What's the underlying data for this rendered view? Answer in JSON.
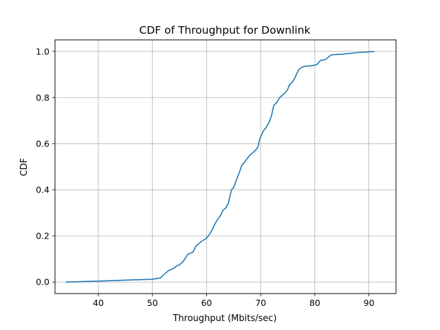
{
  "chart_data": {
    "type": "line",
    "title": "CDF of Throughput for Downlink",
    "xlabel": "Throughput (Mbits/sec)",
    "ylabel": "CDF",
    "xlim": [
      32,
      95
    ],
    "ylim": [
      -0.05,
      1.05
    ],
    "xticks": [
      40,
      50,
      60,
      70,
      80,
      90
    ],
    "yticks": [
      0.0,
      0.2,
      0.4,
      0.6,
      0.8,
      1.0
    ],
    "xtick_labels": [
      "40",
      "50",
      "60",
      "70",
      "80",
      "90"
    ],
    "ytick_labels": [
      "0.0",
      "0.2",
      "0.4",
      "0.6",
      "0.8",
      "1.0"
    ],
    "grid": true,
    "line_color": "#1f77b4",
    "series": [
      {
        "x": [
          34.0,
          40.0,
          46.0,
          50.0,
          51.5,
          52.0,
          52.5,
          53.0,
          54.0,
          54.5,
          55.0,
          55.5,
          56.0,
          56.5,
          57.0,
          57.5,
          58.0,
          58.5,
          59.0,
          60.0,
          60.5,
          61.0,
          61.5,
          62.0,
          62.5,
          63.0,
          63.5,
          64.0,
          64.3,
          64.6,
          65.0,
          65.3,
          65.8,
          66.2,
          66.5,
          67.0,
          67.5,
          68.0,
          68.5,
          69.0,
          69.5,
          69.7,
          70.0,
          70.5,
          71.0,
          71.5,
          72.0,
          72.4,
          72.8,
          73.0,
          73.5,
          74.0,
          74.5,
          75.0,
          75.3,
          75.8,
          76.2,
          76.6,
          77.0,
          77.5,
          78.0,
          79.0,
          80.0,
          80.5,
          81.0,
          82.0,
          82.5,
          83.0,
          85.0,
          88.0,
          91.0
        ],
        "y": [
          0.0,
          0.004,
          0.009,
          0.012,
          0.018,
          0.03,
          0.04,
          0.05,
          0.06,
          0.07,
          0.075,
          0.085,
          0.1,
          0.12,
          0.125,
          0.13,
          0.155,
          0.165,
          0.175,
          0.19,
          0.205,
          0.225,
          0.25,
          0.27,
          0.285,
          0.31,
          0.32,
          0.34,
          0.37,
          0.4,
          0.41,
          0.43,
          0.46,
          0.485,
          0.505,
          0.52,
          0.535,
          0.55,
          0.56,
          0.57,
          0.585,
          0.61,
          0.63,
          0.655,
          0.67,
          0.69,
          0.72,
          0.765,
          0.775,
          0.78,
          0.8,
          0.81,
          0.82,
          0.835,
          0.855,
          0.865,
          0.88,
          0.9,
          0.92,
          0.93,
          0.935,
          0.937,
          0.94,
          0.945,
          0.96,
          0.965,
          0.975,
          0.985,
          0.988,
          0.995,
          1.0
        ]
      }
    ]
  }
}
